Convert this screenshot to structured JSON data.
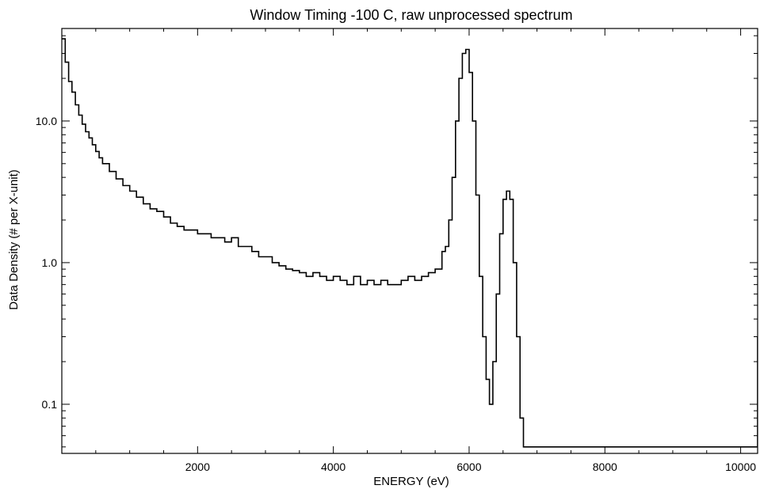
{
  "chart_data": {
    "type": "line",
    "style": "histogram-step",
    "title": "Window Timing -100 C, raw unprocessed spectrum",
    "xlabel": "ENERGY (eV)",
    "ylabel": "Data Density (# per X-unit)",
    "xlim": [
      0,
      10250
    ],
    "ylim": [
      0.045,
      45
    ],
    "yscale": "log",
    "x_ticks": [
      2000,
      4000,
      6000,
      8000,
      10000
    ],
    "y_ticks": [
      0.1,
      1.0,
      10.0
    ],
    "grid": false,
    "legend": "none",
    "line_color": "#000000",
    "series": [
      {
        "x": [
          0,
          50,
          100,
          150,
          200,
          250,
          300,
          350,
          400,
          450,
          500,
          550,
          600,
          700,
          800,
          900,
          1000,
          1100,
          1200,
          1300,
          1400,
          1500,
          1600,
          1700,
          1800,
          1900,
          2000,
          2100,
          2200,
          2300,
          2400,
          2500,
          2600,
          2700,
          2800,
          2900,
          3000,
          3100,
          3200,
          3300,
          3400,
          3500,
          3600,
          3700,
          3800,
          3900,
          4000,
          4100,
          4200,
          4300,
          4400,
          4500,
          4600,
          4700,
          4800,
          4900,
          5000,
          5100,
          5200,
          5300,
          5400,
          5500,
          5600,
          5650,
          5700,
          5750,
          5800,
          5850,
          5900,
          5950,
          6000,
          6050,
          6100,
          6150,
          6200,
          6250,
          6300,
          6350,
          6400,
          6450,
          6500,
          6550,
          6600,
          6650,
          6700,
          6750,
          6800,
          6900,
          7000,
          7100,
          7150,
          7200,
          7500,
          7900,
          7950,
          8000,
          8400,
          8450,
          8500,
          9000,
          10200,
          10250
        ],
        "y": [
          38,
          26,
          19,
          16,
          13,
          11,
          9.5,
          8.4,
          7.6,
          6.8,
          6.1,
          5.5,
          5.0,
          4.4,
          3.9,
          3.5,
          3.2,
          2.9,
          2.6,
          2.4,
          2.3,
          2.1,
          1.9,
          1.8,
          1.7,
          1.7,
          1.6,
          1.6,
          1.5,
          1.5,
          1.4,
          1.5,
          1.3,
          1.3,
          1.2,
          1.1,
          1.1,
          1.0,
          0.95,
          0.9,
          0.88,
          0.85,
          0.8,
          0.85,
          0.8,
          0.75,
          0.8,
          0.75,
          0.7,
          0.8,
          0.7,
          0.75,
          0.7,
          0.75,
          0.7,
          0.7,
          0.75,
          0.8,
          0.75,
          0.8,
          0.85,
          0.9,
          1.2,
          1.3,
          2.0,
          4.0,
          10.0,
          20.0,
          30.0,
          32.0,
          22.0,
          10.0,
          3.0,
          0.8,
          0.3,
          0.15,
          0.1,
          0.2,
          0.6,
          1.6,
          2.8,
          3.2,
          2.8,
          1.0,
          0.3,
          0.08,
          0.05,
          0.05,
          0.05,
          0.05,
          0.05,
          0.05,
          0.05,
          0.05,
          0.05,
          0.05,
          0.05,
          0.05,
          0.05,
          0.05,
          0.05,
          0.3
        ]
      }
    ]
  }
}
